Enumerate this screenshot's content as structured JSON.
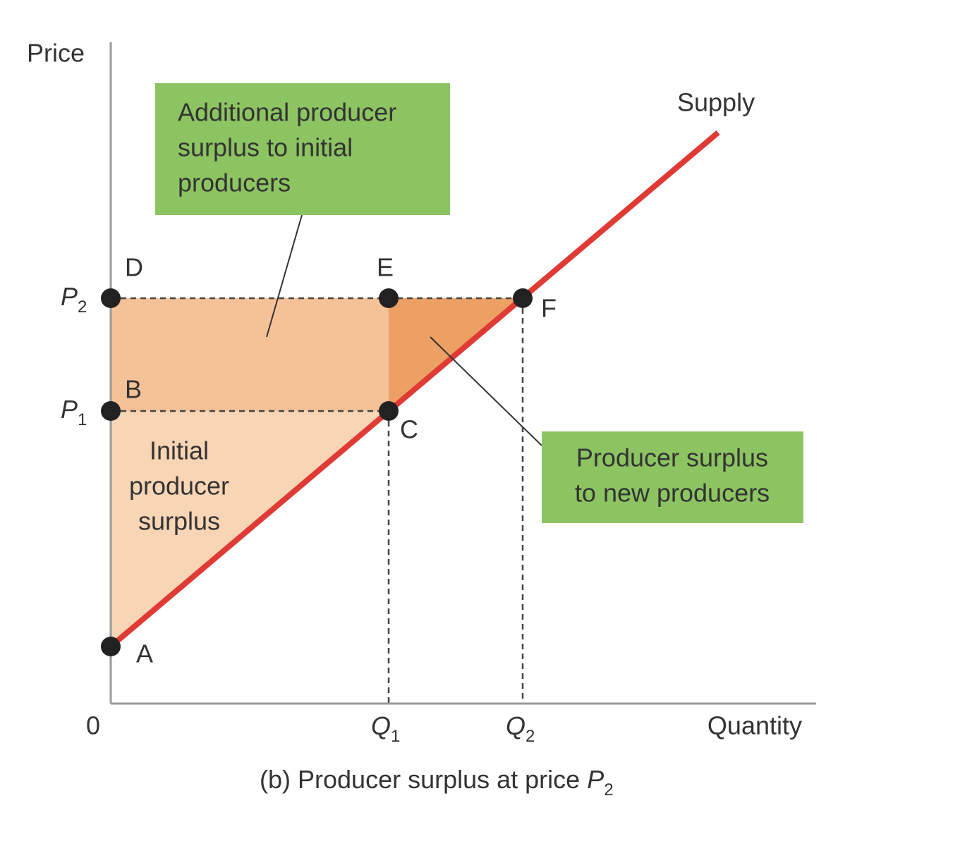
{
  "axes": {
    "y_label": "Price",
    "x_label": "Quantity",
    "origin": "0"
  },
  "ticks": {
    "y": [
      {
        "var": "P",
        "sub": "2"
      },
      {
        "var": "P",
        "sub": "1"
      }
    ],
    "x": [
      {
        "var": "Q",
        "sub": "1"
      },
      {
        "var": "Q",
        "sub": "2"
      }
    ]
  },
  "curve": {
    "label": "Supply"
  },
  "points": [
    "A",
    "B",
    "C",
    "D",
    "E",
    "F"
  ],
  "regions": {
    "initial": [
      "Initial",
      "producer",
      "surplus"
    ]
  },
  "callouts": [
    {
      "lines": [
        "Additional producer",
        "surplus to initial",
        "producers"
      ]
    },
    {
      "lines": [
        "Producer surplus",
        "to new producers"
      ]
    }
  ],
  "caption": {
    "text": "(b) Producer surplus at price ",
    "var": "P",
    "sub": "2"
  }
}
